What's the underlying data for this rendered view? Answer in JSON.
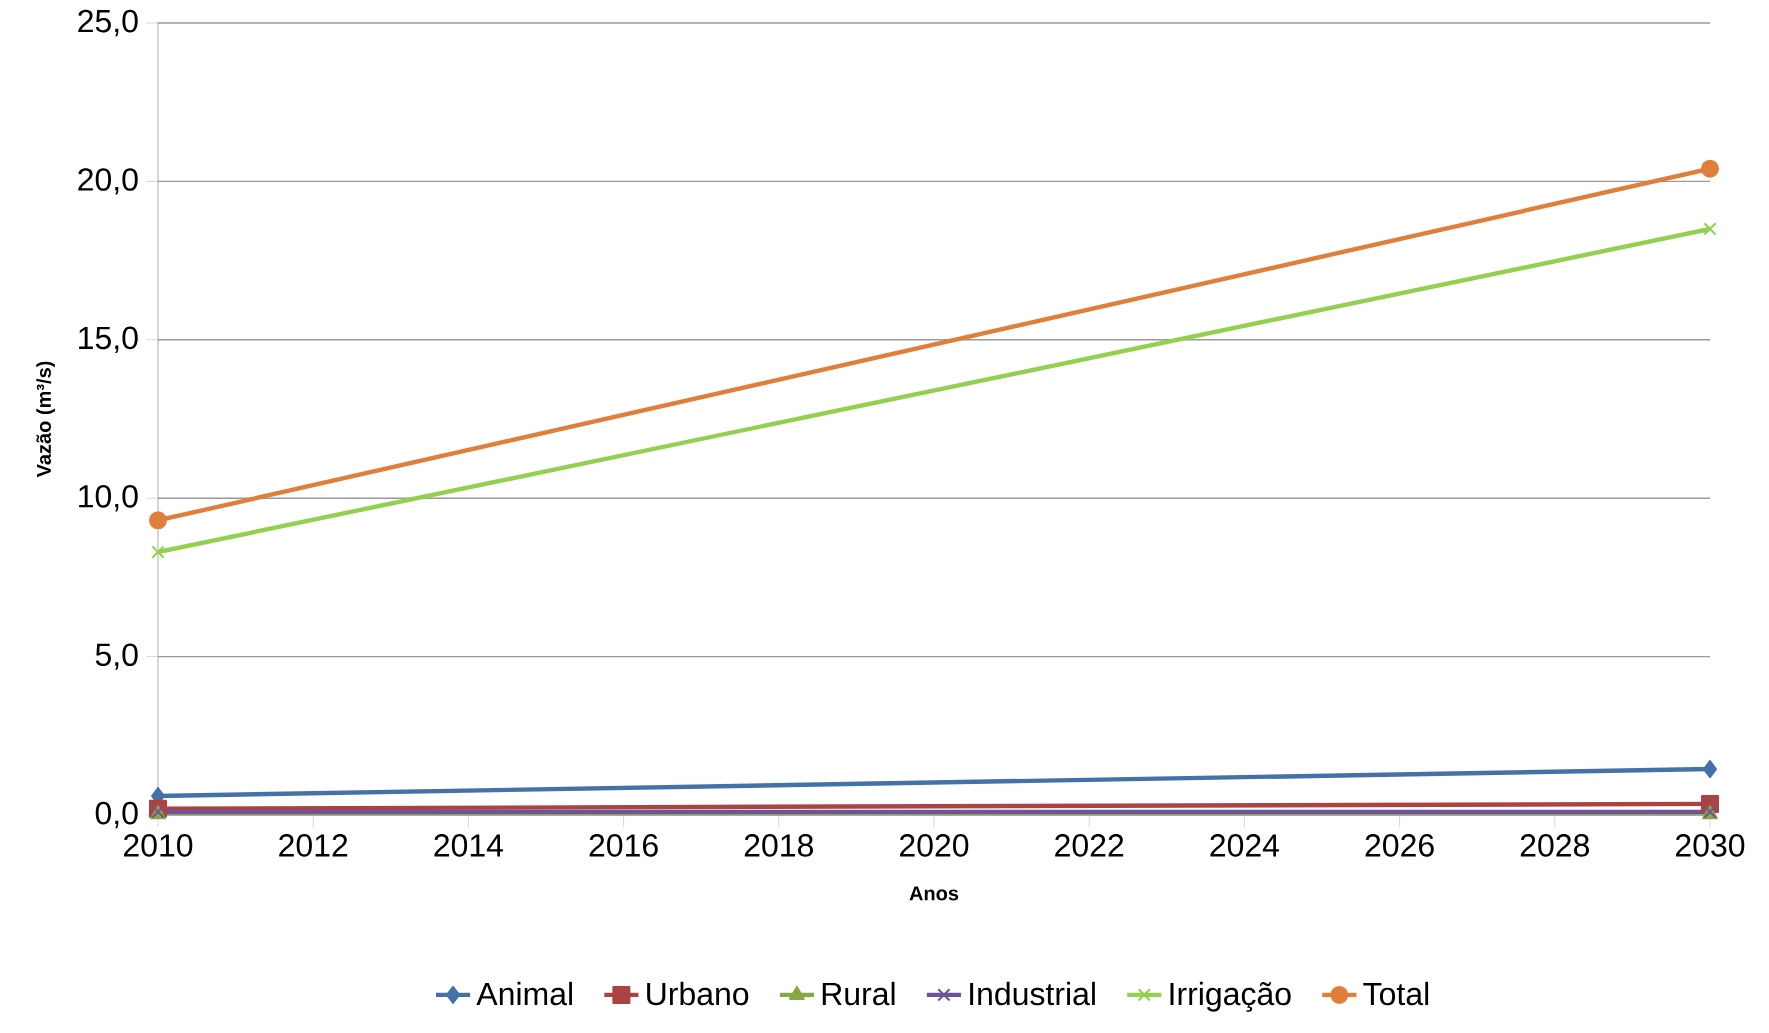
{
  "chart_data": {
    "type": "line",
    "xlabel": "Anos",
    "ylabel": "Vazão (m³/s)",
    "x": [
      2010,
      2030
    ],
    "xlim": [
      2010,
      2030
    ],
    "xticks": [
      2010,
      2012,
      2014,
      2016,
      2018,
      2020,
      2022,
      2024,
      2026,
      2028,
      2030
    ],
    "ylim": [
      0,
      25
    ],
    "yticks": [
      {
        "value": 0,
        "label": "0,0"
      },
      {
        "value": 5,
        "label": "5,0"
      },
      {
        "value": 10,
        "label": "10,0"
      },
      {
        "value": 15,
        "label": "15,0"
      },
      {
        "value": 20,
        "label": "20,0"
      },
      {
        "value": 25,
        "label": "25,0"
      }
    ],
    "grid": "y",
    "legend": "bottom",
    "line_style": "solid",
    "series": [
      {
        "name": "Animal",
        "color": "#4472a8",
        "marker": "diamond",
        "values": [
          0.6,
          1.45
        ]
      },
      {
        "name": "Urbano",
        "color": "#a94442",
        "marker": "square",
        "values": [
          0.2,
          0.35
        ]
      },
      {
        "name": "Rural",
        "color": "#86a845",
        "marker": "triangle",
        "values": [
          0.02,
          0.02
        ]
      },
      {
        "name": "Industrial",
        "color": "#6f5396",
        "marker": "cross",
        "values": [
          0.1,
          0.1
        ]
      },
      {
        "name": "Irrigação",
        "color": "#92d050",
        "marker": "cross",
        "values": [
          8.3,
          18.5
        ]
      },
      {
        "name": "Total",
        "color": "#e07f3a",
        "marker": "circle",
        "values": [
          9.3,
          20.4
        ]
      }
    ]
  }
}
